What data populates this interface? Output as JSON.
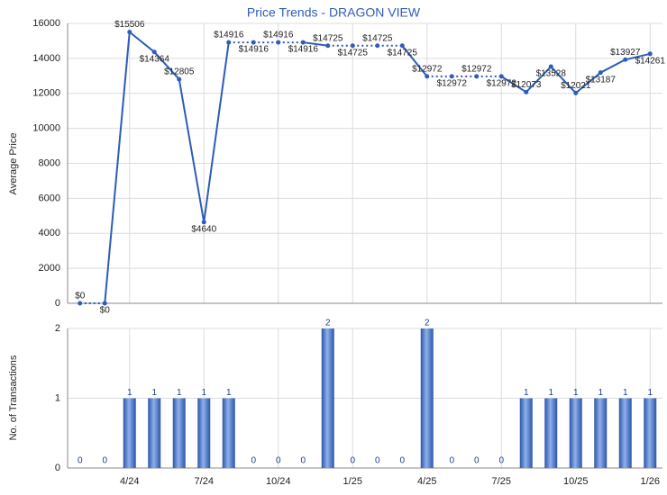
{
  "chart_data": [
    {
      "type": "line",
      "title": "Price Trends - DRAGON VIEW",
      "y_label": "Average Price",
      "color": "#2e5cb8",
      "values": [
        0,
        0,
        15506,
        14364,
        12805,
        4640,
        14916,
        14916,
        14916,
        14916,
        14725,
        14725,
        14725,
        14725,
        12972,
        12972,
        12972,
        12972,
        12073,
        13528,
        12021,
        13187,
        13927,
        14261
      ],
      "value_labels": [
        "$0",
        "$0",
        "$15506",
        "$14364",
        "$12805",
        "$4640",
        "$14916",
        "$14916",
        "$14916",
        "$14916",
        "$14725",
        "$14725",
        "$14725",
        "$14725",
        "$12972",
        "$12972",
        "$12972",
        "$12972",
        "$12073",
        "$13528",
        "$12021",
        "$13187",
        "$13927",
        "$14261"
      ],
      "ylim": [
        0,
        16000
      ],
      "yticks": [
        0,
        2000,
        4000,
        6000,
        8000,
        10000,
        12000,
        14000,
        16000
      ],
      "grid": true
    },
    {
      "type": "bar",
      "y_label": "No. of Transactions",
      "color": "#3f6cc7",
      "categories": [
        null,
        null,
        "4/24",
        null,
        null,
        "7/24",
        null,
        null,
        "10/24",
        null,
        null,
        "1/25",
        null,
        null,
        "4/25",
        null,
        null,
        "7/25",
        null,
        null,
        "10/25",
        null,
        null,
        "1/26"
      ],
      "values": [
        0,
        0,
        1,
        1,
        1,
        1,
        1,
        0,
        0,
        0,
        2,
        0,
        0,
        0,
        2,
        0,
        0,
        0,
        1,
        1,
        1,
        1,
        1,
        1
      ],
      "ylim": [
        0,
        2
      ],
      "yticks": [
        0,
        1,
        2
      ],
      "grid": true
    }
  ]
}
